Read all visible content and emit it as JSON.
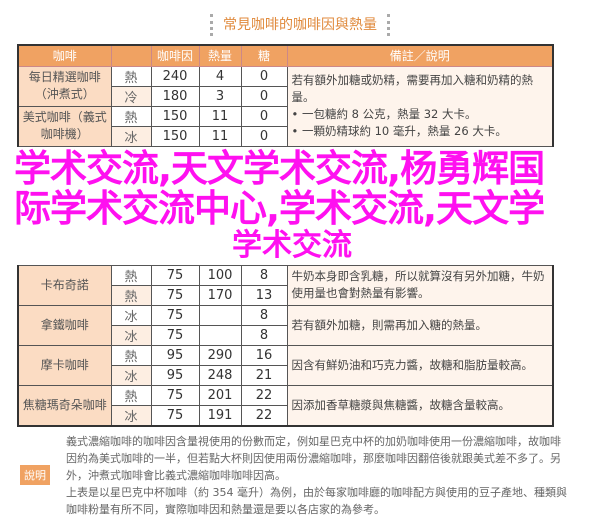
{
  "title": "常見咖啡的咖啡因與熱量",
  "headers": [
    "咖啡",
    "",
    "咖啡因",
    "熱量",
    "糖",
    "備註／說明"
  ],
  "drinks": [
    {
      "name": "每日精選咖啡（沖煮式）",
      "rows": [
        [
          "熱",
          "240",
          "4",
          "0"
        ],
        [
          "冷",
          "180",
          "3",
          "0"
        ]
      ]
    },
    {
      "name": "美式咖啡（義式咖啡機）",
      "rows": [
        [
          "熱",
          "150",
          "11",
          "0"
        ],
        [
          "冰",
          "150",
          "11",
          "0"
        ]
      ]
    },
    {
      "name": "卡布奇諾",
      "rows": [
        [
          "熱",
          "75",
          "100",
          "8"
        ],
        [
          "熱",
          "75",
          "170",
          "13"
        ]
      ]
    },
    {
      "name": "拿鐵咖啡",
      "rows": [
        [
          "冰",
          "75",
          "",
          "8"
        ],
        [
          "冰",
          "75",
          "",
          "8"
        ]
      ]
    },
    {
      "name": "摩卡咖啡",
      "rows": [
        [
          "熱",
          "95",
          "290",
          "16"
        ],
        [
          "冰",
          "95",
          "248",
          "21"
        ]
      ]
    },
    {
      "name": "焦糖瑪奇朵咖啡",
      "rows": [
        [
          "熱",
          "75",
          "201",
          "22"
        ],
        [
          "冰",
          "75",
          "191",
          "22"
        ]
      ]
    }
  ],
  "notes": {
    "n1": "若有額外加糖或奶精，需要再加入糖和奶精的熱量。",
    "n1b": "• 一包糖約 8 公克，熱量 32 大卡。",
    "n1c": "• 一顆奶精球約 10 毫升，熱量 26 大卡。",
    "n2": "牛奶本身即含乳糖，所以就算沒有另外加糖，牛奶使用量也會對熱量有影響。",
    "n3": "若有額外加糖，則需再加入糖的熱量。",
    "n4": "因含有鮮奶油和巧克力醬，故糖和脂肪量較高。",
    "n5": "因添加香草糖漿與焦糖醬，故糖含量較高。"
  },
  "badge": "說明",
  "desc": [
    "義式濃縮咖啡的咖啡因含量視使用的份數而定，例如星巴克中杯的加奶咖啡使用一份濃縮咖啡，故咖啡",
    "因約為美式咖啡的一半，但若點大杯則因使用兩份濃縮咖啡，那麼咖啡因翻倍後就跟美式差不多了。另",
    "外，沖煮式咖啡會比義式濃縮咖啡咖啡因高。",
    "上表是以星巴克中杯咖啡（約 354 毫升）為例，由於每家咖啡廳的咖啡配方與使用的豆子產地、種類與",
    "咖啡粉量有所不同，實際咖啡因和熱量還是要以各店家的為參考。"
  ],
  "overlay": [
    "学术交流,天文学术交流,杨勇辉国",
    "际学术交流中心,学术交流,天文学",
    "学术交流"
  ],
  "colors": {
    "header": "#f0a262",
    "overlay": "#ff10f0"
  }
}
